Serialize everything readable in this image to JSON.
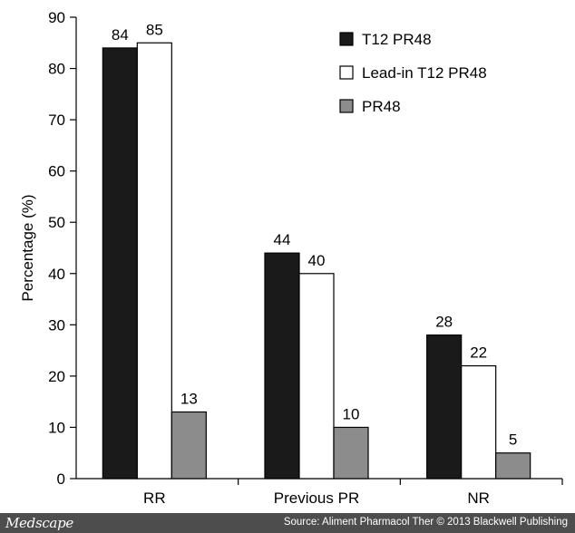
{
  "chart_data": {
    "type": "bar",
    "categories": [
      "RR",
      "Previous PR",
      "NR"
    ],
    "series": [
      {
        "name": "T12 PR48",
        "values": [
          84,
          44,
          28
        ],
        "color": "#1a1a1a"
      },
      {
        "name": "Lead-in T12 PR48",
        "values": [
          85,
          40,
          22
        ],
        "color": "#ffffff"
      },
      {
        "name": "PR48",
        "values": [
          13,
          10,
          5
        ],
        "color": "#8c8c8c"
      }
    ],
    "ylabel": "Percentage (%)",
    "ylim": [
      0,
      90
    ],
    "yticks": [
      0,
      10,
      20,
      30,
      40,
      50,
      60,
      70,
      80,
      90
    ],
    "legend_position": "top-right",
    "data_labels": true,
    "grid": false
  },
  "footer": {
    "brand": "Medscape",
    "source": "Source: Aliment Pharmacol Ther © 2013 Blackwell Publishing",
    "background": "#4d4d4d"
  }
}
